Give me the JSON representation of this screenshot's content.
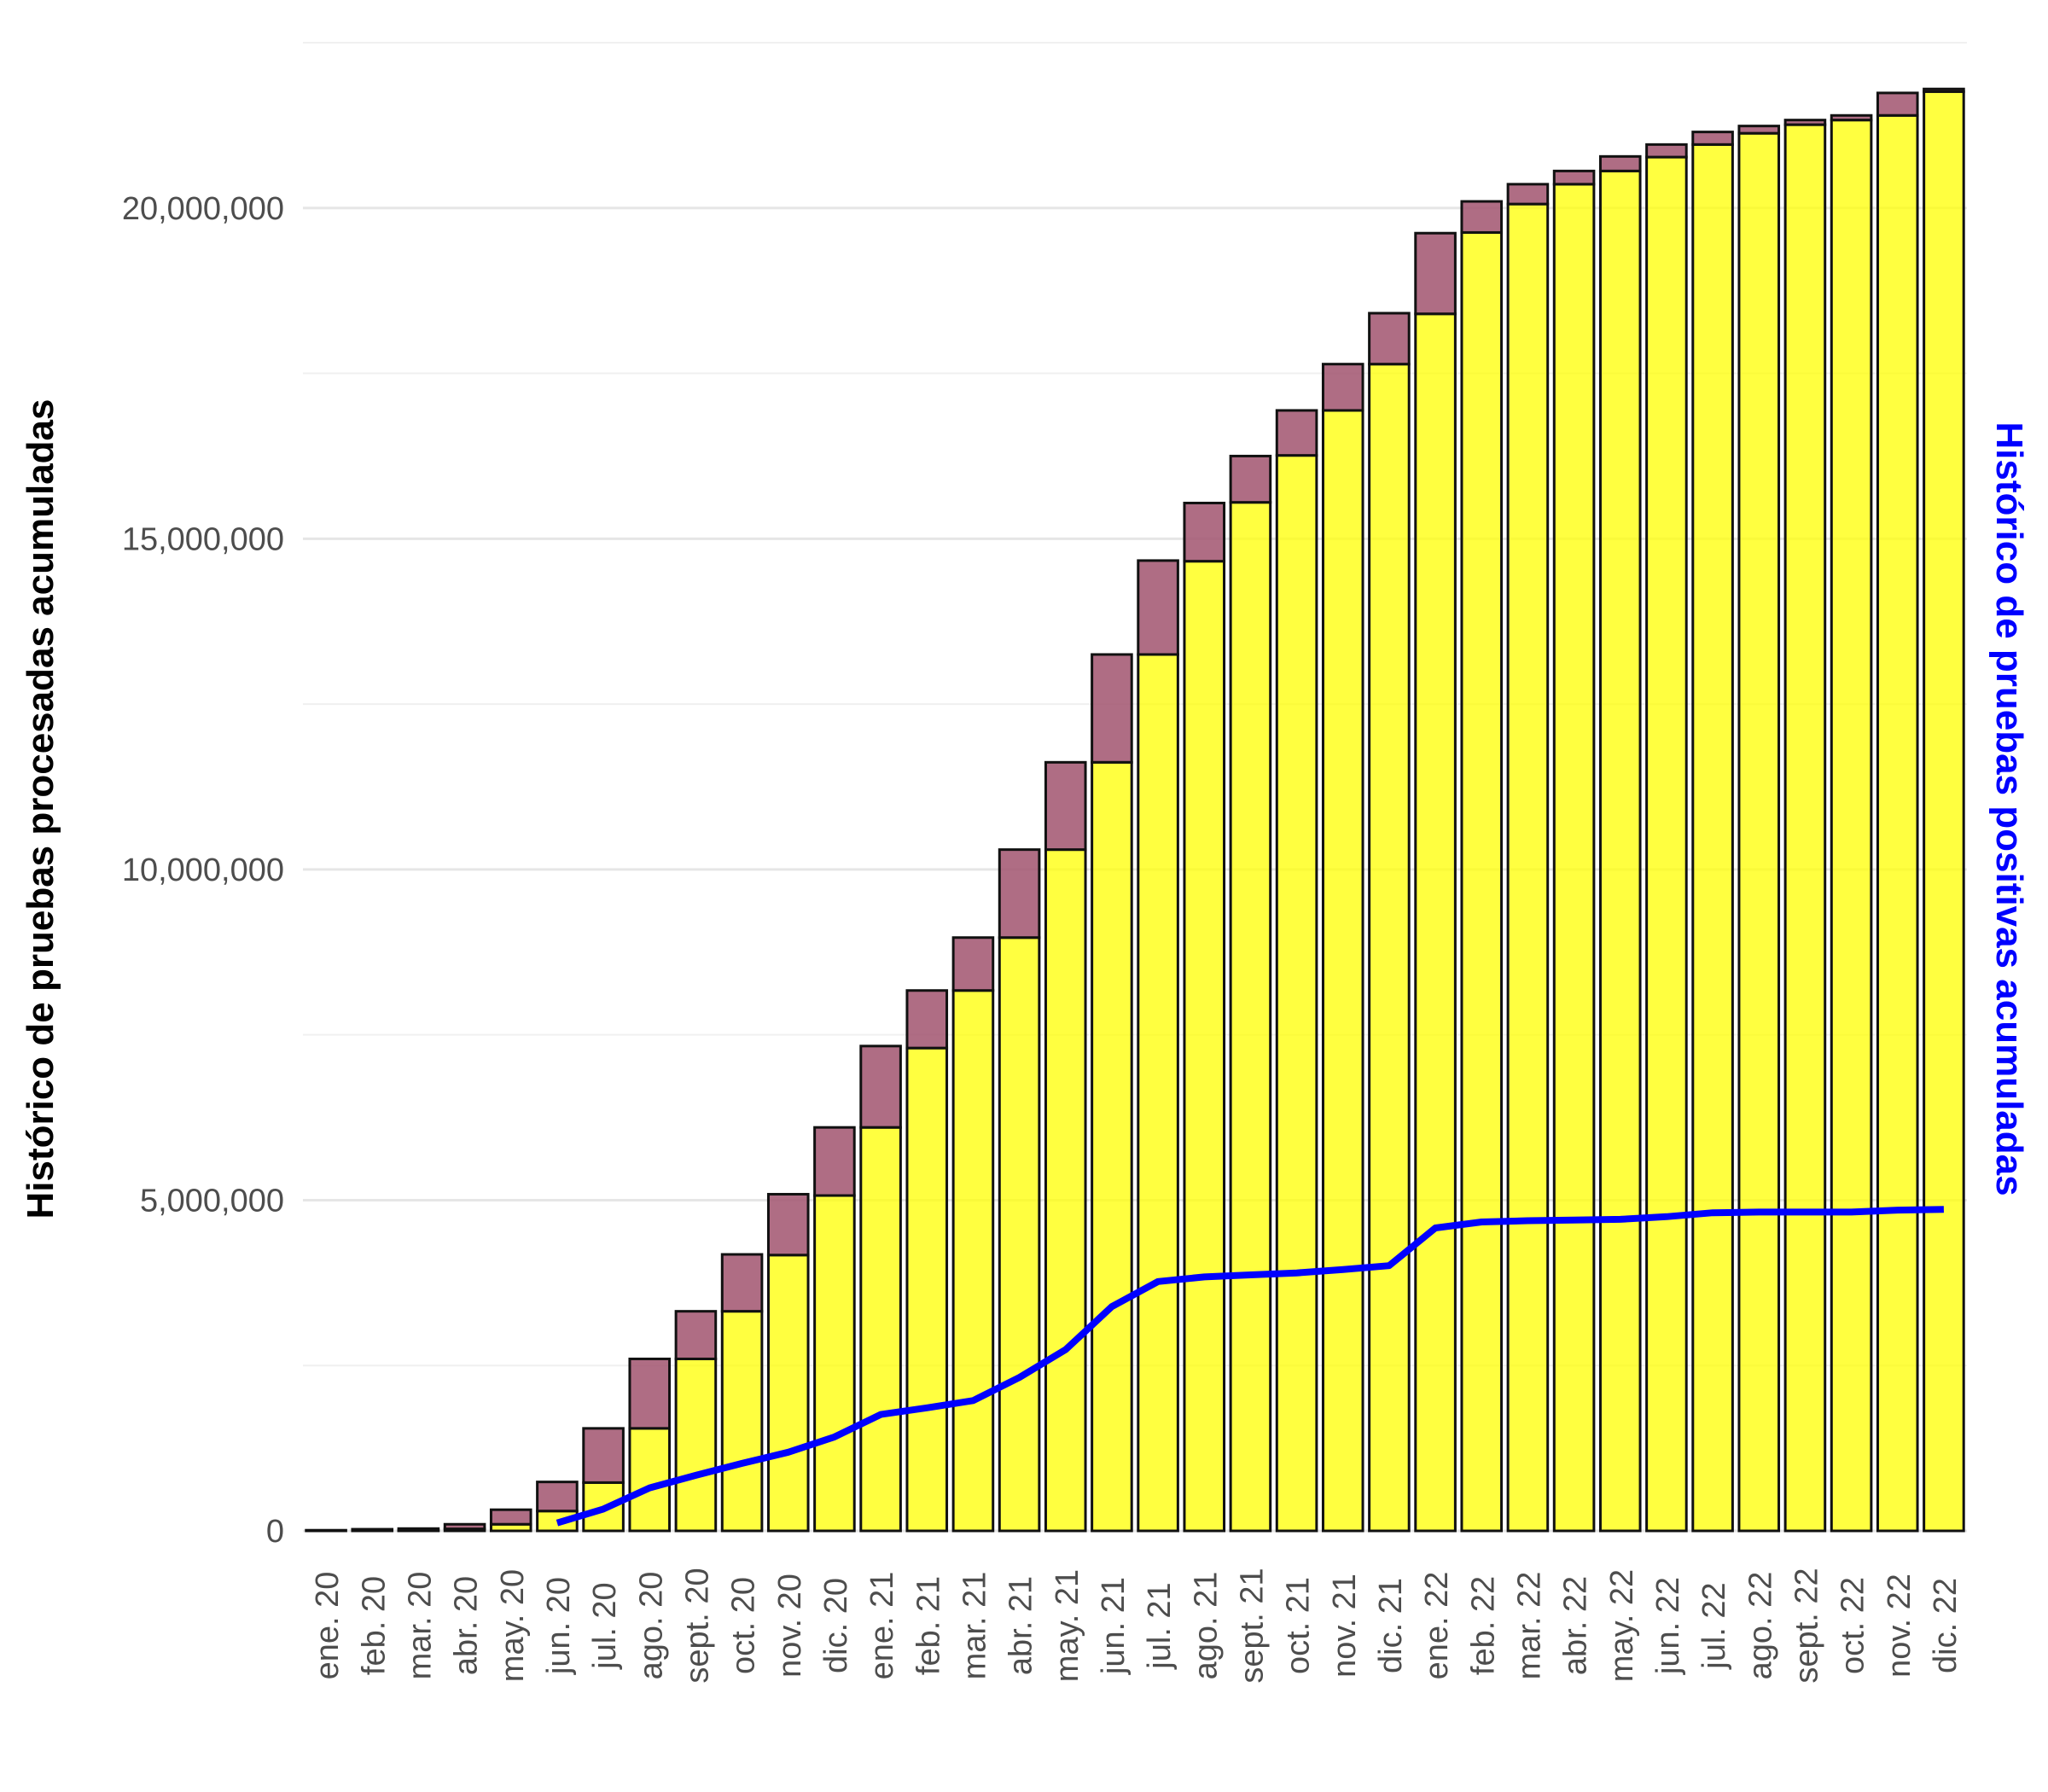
{
  "chart_data": {
    "type": "bar",
    "stacked": true,
    "ylabel": "Histórico de pruebas procesadas acumuladas",
    "ylabel_right": "Histórico de pruebas positivas acumuladas",
    "ylim": [
      0,
      22500000
    ],
    "yticks": [
      0,
      5000000,
      10000000,
      15000000,
      20000000
    ],
    "ytick_labels": [
      "0",
      "5,000,000",
      "10,000,000",
      "15,000,000",
      "20,000,000"
    ],
    "grid": true,
    "categories": [
      "ene. 20",
      "feb. 20",
      "mar. 20",
      "abr. 20",
      "may. 20",
      "jun. 20",
      "jul. 20",
      "ago. 20",
      "sept. 20",
      "oct. 20",
      "nov. 20",
      "dic. 20",
      "ene. 21",
      "feb. 21",
      "mar. 21",
      "abr. 21",
      "may. 21",
      "jun. 21",
      "jul. 21",
      "ago. 21",
      "sept. 21",
      "oct. 21",
      "nov. 21",
      "dic. 21",
      "ene. 22",
      "feb. 22",
      "mar. 22",
      "abr. 22",
      "may. 22",
      "jun. 22",
      "jul. 22",
      "ago. 22",
      "sept. 22",
      "oct. 22",
      "nov. 22",
      "dic. 22"
    ],
    "series": [
      {
        "color": "#ffff00",
        "values": [
          0,
          0,
          5000,
          30000,
          100000,
          300000,
          730000,
          1550000,
          2600000,
          3320000,
          4170000,
          5070000,
          6100000,
          7300000,
          8170000,
          8970000,
          10300000,
          11620000,
          13250000,
          14660000,
          15550000,
          16260000,
          16940000,
          17640000,
          18400000,
          19630000,
          20060000,
          20360000,
          20560000,
          20770000,
          20960000,
          21130000,
          21260000,
          21330000,
          21400000,
          21760000
        ]
      },
      {
        "color": "#a1536f",
        "values": [
          10000,
          25000,
          30000,
          70000,
          220000,
          440000,
          820000,
          1050000,
          720000,
          860000,
          920000,
          1030000,
          1230000,
          870000,
          800000,
          1330000,
          1320000,
          1630000,
          1420000,
          880000,
          700000,
          680000,
          700000,
          770000,
          1220000,
          470000,
          300000,
          200000,
          220000,
          190000,
          190000,
          110000,
          70000,
          70000,
          340000,
          40000
        ]
      }
    ],
    "line": {
      "color": "#0000ff",
      "start_index": 5,
      "values": [
        0,
        0,
        0,
        0,
        0,
        120000,
        330000,
        650000,
        840000,
        1020000,
        1190000,
        1420000,
        1760000,
        1860000,
        1970000,
        2320000,
        2740000,
        3390000,
        3770000,
        3840000,
        3870000,
        3900000,
        3950000,
        4010000,
        4580000,
        4670000,
        4690000,
        4700000,
        4710000,
        4750000,
        4810000,
        4820000,
        4820000,
        4820000,
        4850000,
        4860000
      ]
    }
  }
}
